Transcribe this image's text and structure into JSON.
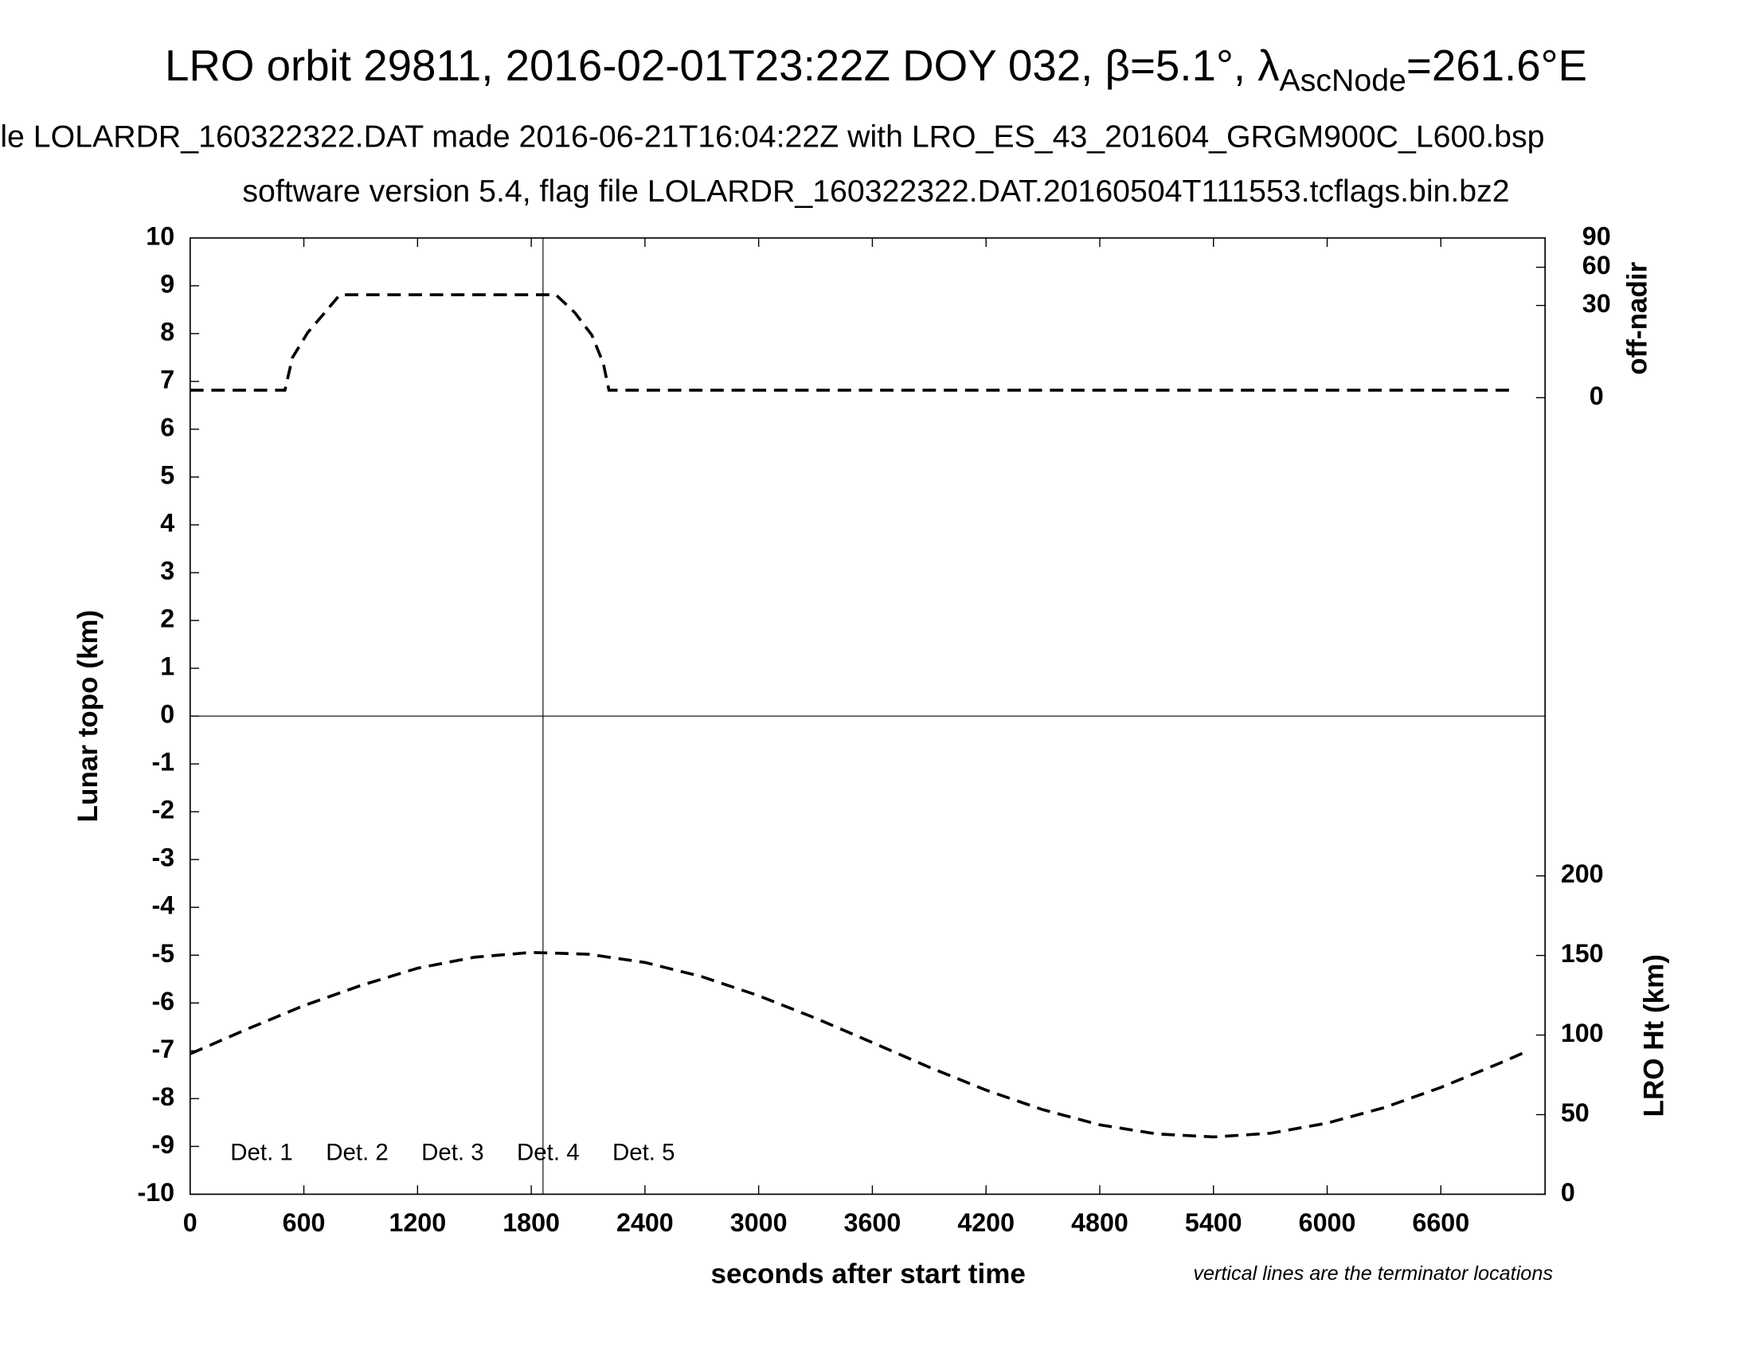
{
  "chart_data": {
    "type": "line",
    "title": "LRO orbit 29811, 2016-02-01T23:22Z DOY 032, β=5.1°, λ",
    "title_sub": "AscNode",
    "title_end": "=261.6°E",
    "subtitle": "le LOLARDR_160322322.DAT made 2016-06-21T16:04:22Z with LRO_ES_43_201604_GRGM900C_L600.bsp",
    "subtitle2": "software version 5.4, flag file LOLARDR_160322322.DAT.20160504T111553.tcflags.bin.bz2",
    "xlabel": "seconds after start time",
    "ylabel": "Lunar topo (km)",
    "y2label": "off-nadir",
    "y3label": "LRO Ht (km)",
    "note": "vertical lines are the terminator locations",
    "xlim": [
      0,
      7150
    ],
    "xticks": [
      0,
      600,
      1200,
      1800,
      2400,
      3000,
      3600,
      4200,
      4800,
      5400,
      6000,
      6600
    ],
    "ylim": [
      -10,
      10
    ],
    "yticks": [
      -10,
      -9,
      -8,
      -7,
      -6,
      -5,
      -4,
      -3,
      -2,
      -1,
      0,
      1,
      2,
      3,
      4,
      5,
      6,
      7,
      8,
      9,
      10
    ],
    "y2lim": [
      0,
      90
    ],
    "y2scale": "sqrt",
    "y2ticks": [
      0,
      30,
      60,
      90
    ],
    "y3lim": [
      0,
      200
    ],
    "y3ticks": [
      0,
      50,
      100,
      150,
      200
    ],
    "terminators": [
      1862
    ],
    "zero_line": 0,
    "legend": [
      {
        "name": "Det. 1",
        "color": "#000000"
      },
      {
        "name": "Det. 2",
        "color": "#0000ff"
      },
      {
        "name": "Det. 3",
        "color": "#00ee00"
      },
      {
        "name": "Det. 4",
        "color": "#ffa500"
      },
      {
        "name": "Det. 5",
        "color": "#ff0000"
      }
    ],
    "series": [
      {
        "name": "off-nadir",
        "axis": "y2",
        "color": "#000000",
        "x": [
          0,
          500,
          540,
          620,
          710,
          790,
          1930,
          2030,
          2120,
          2180,
          2210,
          7000
        ],
        "values": [
          0.2,
          0.2,
          5.7,
          14.9,
          25.5,
          37.4,
          37.4,
          25.5,
          13.8,
          4.2,
          0.2,
          0.2
        ]
      },
      {
        "name": "LRO Ht",
        "axis": "y3",
        "color": "#000000",
        "x": [
          0,
          300,
          600,
          900,
          1200,
          1500,
          1800,
          2100,
          2400,
          2700,
          3000,
          3300,
          3600,
          3900,
          4200,
          4500,
          4800,
          5100,
          5400,
          5700,
          6000,
          6300,
          6600,
          6900,
          7030
        ],
        "values": [
          88.2,
          103.7,
          118.5,
          131.1,
          142.0,
          148.9,
          151.9,
          150.8,
          145.6,
          136.7,
          124.7,
          110.6,
          95.3,
          79.8,
          65.4,
          53.1,
          43.6,
          37.9,
          36.0,
          38.3,
          44.7,
          54.4,
          67.1,
          81.8,
          88.5
        ]
      }
    ]
  }
}
